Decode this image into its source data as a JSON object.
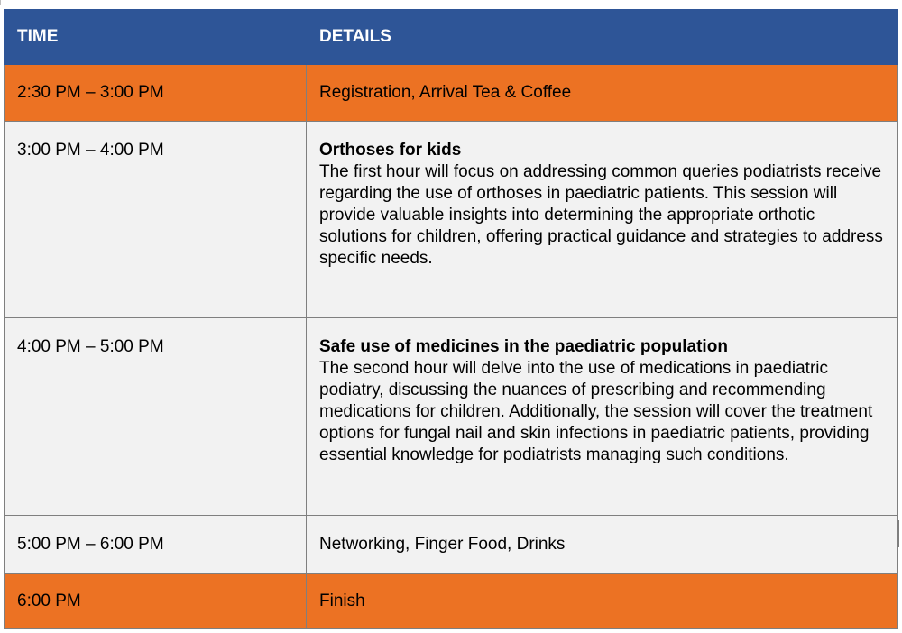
{
  "table": {
    "headers": {
      "time": "TIME",
      "details": "DETAILS"
    },
    "rows": [
      {
        "time": "2:30 PM – 3:00 PM",
        "title": "",
        "details": "Registration, Arrival Tea & Coffee",
        "highlight": "orange"
      },
      {
        "time": "3:00 PM – 4:00 PM",
        "title": "Orthoses for kids",
        "details": "The first hour will focus on addressing common queries podiatrists receive regarding the use of orthoses in paediatric patients. This session will provide valuable insights into determining the appropriate orthotic solutions for children, offering practical guidance and strategies to address specific needs.",
        "highlight": "grey"
      },
      {
        "time": "4:00 PM – 5:00 PM",
        "title": "Safe use of medicines in the paediatric population",
        "details": "The second hour will delve into the use of medications in paediatric podiatry, discussing the nuances of prescribing and recommending medications for children. Additionally, the session will cover the treatment options for fungal nail and skin infections in paediatric patients, providing essential knowledge for podiatrists managing such conditions.",
        "highlight": "grey"
      },
      {
        "time": "5:00 PM – 6:00 PM",
        "title": "",
        "details": "Networking, Finger Food, Drinks",
        "highlight": "grey"
      },
      {
        "time": "6:00 PM",
        "title": "",
        "details": "Finish",
        "highlight": "orange"
      }
    ]
  },
  "colors": {
    "header_bg": "#2e5597",
    "highlight_orange": "#ec7223",
    "row_grey": "#f2f2f2",
    "border": "#7f7f7f"
  }
}
